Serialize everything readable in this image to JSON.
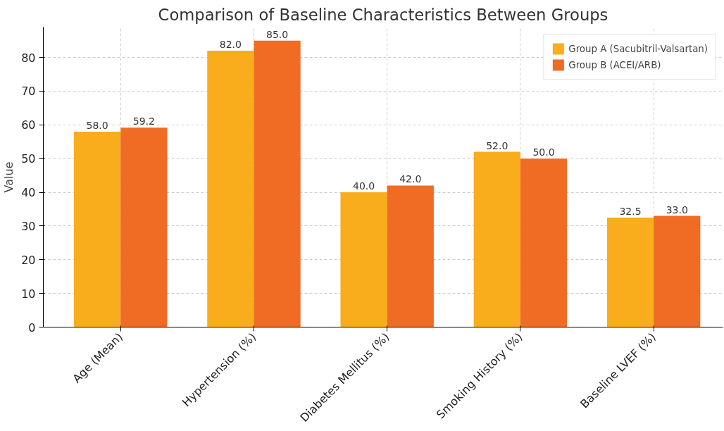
{
  "chart_data": {
    "type": "bar",
    "title": "Comparison of Baseline Characteristics Between Groups",
    "ylabel": "Value",
    "categories": [
      "Age (Mean)",
      "Hypertension (%)",
      "Diabetes Mellitus (%)",
      "Smoking History (%)",
      "Baseline LVEF (%)"
    ],
    "series": [
      {
        "name": "Group A (Sacubitril-Valsartan)",
        "color": "#f9ac1c",
        "values": [
          58.0,
          82.0,
          40.0,
          52.0,
          32.5
        ],
        "value_labels": [
          "58.0",
          "82.0",
          "40.0",
          "52.0",
          "32.5"
        ]
      },
      {
        "name": "Group B (ACEI/ARB)",
        "color": "#f06b24",
        "values": [
          59.2,
          85.0,
          42.0,
          50.0,
          33.0
        ],
        "value_labels": [
          "59.2",
          "85.0",
          "42.0",
          "50.0",
          "33.0"
        ]
      }
    ],
    "ylim": [
      0,
      89
    ],
    "yticks": [
      0,
      10,
      20,
      30,
      40,
      50,
      60,
      70,
      80
    ],
    "grid": true,
    "legend": "top right"
  }
}
